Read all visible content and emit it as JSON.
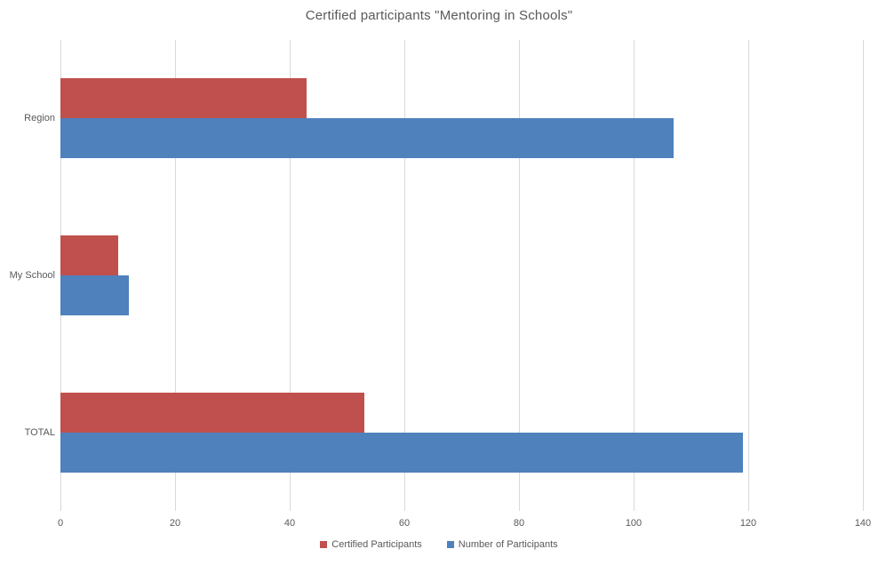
{
  "title": "Certified participants \"Mentoring in Schools\"",
  "colors": {
    "certified_participants": "#c0504d",
    "number_of_participants": "#4f81bd",
    "gridline": "#d9d9d9",
    "text": "#595959",
    "background": "#ffffff"
  },
  "chart_data": {
    "type": "bar",
    "orientation": "horizontal",
    "title": "Certified participants \"Mentoring in Schools\"",
    "categories": [
      "Region",
      "My School",
      "TOTAL"
    ],
    "series": [
      {
        "name": "Certified Participants",
        "color": "#c0504d",
        "values": [
          43,
          10,
          53
        ]
      },
      {
        "name": "Number of Participants",
        "color": "#4f81bd",
        "values": [
          107,
          12,
          119
        ]
      }
    ],
    "xlabel": "",
    "ylabel": "",
    "xlim": [
      0,
      140
    ],
    "xticks": [
      0,
      20,
      40,
      60,
      80,
      100,
      120,
      140
    ],
    "grid": true,
    "legend_position": "bottom"
  },
  "legend": {
    "items": [
      {
        "label": "Certified Participants",
        "color": "#c0504d"
      },
      {
        "label": "Number of Participants",
        "color": "#4f81bd"
      }
    ]
  }
}
